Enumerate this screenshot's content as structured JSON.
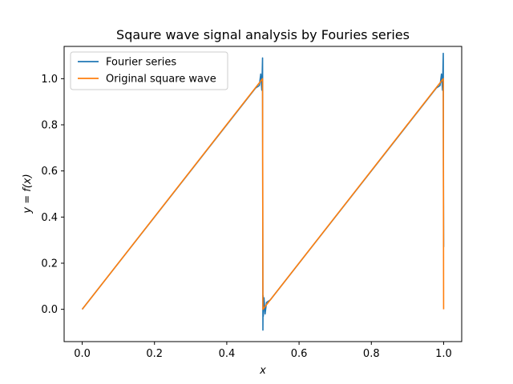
{
  "chart_data": {
    "type": "line",
    "title": "Sqaure wave signal analysis by Fouries series",
    "xlabel": "x",
    "ylabel": "y = f(x)",
    "xlim": [
      -0.05,
      1.05
    ],
    "ylim": [
      -0.14,
      1.14
    ],
    "xticks": [
      "0.0",
      "0.2",
      "0.4",
      "0.6",
      "0.8",
      "1.0"
    ],
    "yticks": [
      "0.0",
      "0.2",
      "0.4",
      "0.6",
      "0.8",
      "1.0"
    ],
    "grid": false,
    "legend_position": "top-left",
    "series": [
      {
        "name": "Fourier series",
        "color": "#1f77b4",
        "x": [
          0.0,
          0.48,
          0.49,
          0.494,
          0.497,
          0.499,
          0.4995,
          0.5,
          0.5005,
          0.501,
          0.503,
          0.506,
          0.51,
          0.52,
          0.98,
          0.99,
          0.994,
          0.997,
          0.999,
          0.9995,
          1.0
        ],
        "y": [
          0.0,
          0.96,
          0.97,
          1.02,
          0.95,
          1.09,
          0.5,
          -0.09,
          0.06,
          -0.03,
          0.05,
          -0.02,
          0.03,
          0.04,
          0.96,
          0.97,
          1.02,
          0.95,
          1.11,
          0.6,
          0.27
        ]
      },
      {
        "name": "Original square wave",
        "color": "#ff7f0e",
        "x": [
          0.0,
          0.499,
          0.5,
          0.999,
          1.0
        ],
        "y": [
          0.0,
          1.0,
          0.0,
          1.0,
          0.0
        ]
      }
    ]
  }
}
